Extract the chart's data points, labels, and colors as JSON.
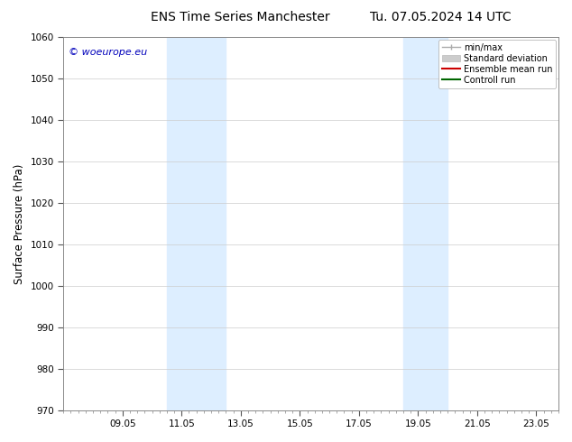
{
  "title_left": "ENS Time Series Manchester",
  "title_right": "Tu. 07.05.2024 14 UTC",
  "ylabel": "Surface Pressure (hPa)",
  "ylim": [
    970,
    1060
  ],
  "yticks": [
    970,
    980,
    990,
    1000,
    1010,
    1020,
    1030,
    1040,
    1050,
    1060
  ],
  "xtick_labels": [
    "09.05",
    "11.05",
    "13.05",
    "15.05",
    "17.05",
    "19.05",
    "21.05",
    "23.05"
  ],
  "xtick_values": [
    2,
    4,
    6,
    8,
    10,
    12,
    14,
    16
  ],
  "xlim": [
    0,
    16.5
  ],
  "shaded_bands": [
    {
      "x_start": 3.5,
      "x_end": 5.5
    },
    {
      "x_start": 11.5,
      "x_end": 13.0
    }
  ],
  "shaded_color": "#ddeeff",
  "watermark_text": "© woeurope.eu",
  "watermark_color": "#0000bb",
  "legend_entries": [
    {
      "label": "min/max",
      "color": "#aaaaaa",
      "lw": 1.0
    },
    {
      "label": "Standard deviation",
      "color": "#cccccc",
      "lw": 4
    },
    {
      "label": "Ensemble mean run",
      "color": "#cc0000",
      "lw": 1.5
    },
    {
      "label": "Controll run",
      "color": "#006600",
      "lw": 1.5
    }
  ],
  "background_color": "#ffffff",
  "grid_color": "#cccccc",
  "title_fontsize": 10,
  "tick_fontsize": 7.5,
  "label_fontsize": 8.5,
  "legend_fontsize": 7.0
}
